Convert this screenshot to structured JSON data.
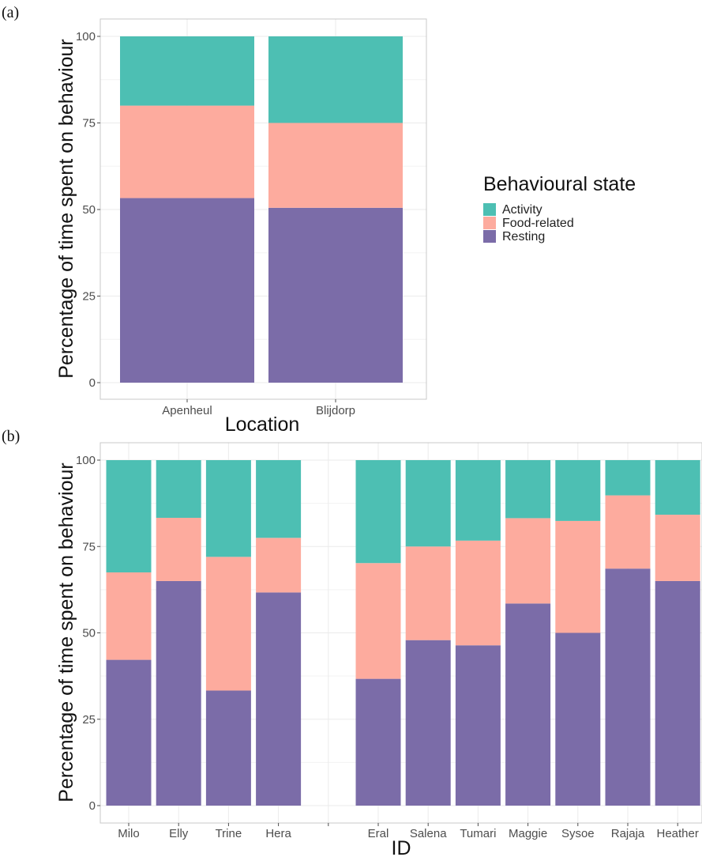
{
  "colors": {
    "Activity": "#4dbfb3",
    "Food-related": "#fdab9e",
    "Resting": "#7b6ca8"
  },
  "legend": {
    "title": "Behavioural state",
    "items": [
      "Activity",
      "Food-related",
      "Resting"
    ]
  },
  "chart_data": [
    {
      "panel_label": "(a)",
      "type": "bar",
      "stacked": true,
      "xlabel": "Location",
      "ylabel": "Percentage of time spent on behaviour",
      "ylim": [
        0,
        100
      ],
      "yticks": [
        0,
        25,
        50,
        75,
        100
      ],
      "categories": [
        "Apenheul",
        "Blijdorp"
      ],
      "series": [
        {
          "name": "Resting",
          "values": [
            53.3,
            50.5
          ]
        },
        {
          "name": "Food-related",
          "values": [
            26.7,
            24.5
          ]
        },
        {
          "name": "Activity",
          "values": [
            20.0,
            25.0
          ]
        }
      ],
      "grid": true
    },
    {
      "panel_label": "(b)",
      "type": "bar",
      "stacked": true,
      "xlabel": "ID",
      "ylabel": "Percentage of time spent on behaviour",
      "ylim": [
        0,
        100
      ],
      "yticks": [
        0,
        25,
        50,
        75,
        100
      ],
      "categories": [
        "Milo",
        "Elly",
        "Trine",
        "Hera",
        "",
        "Eral",
        "Salena",
        "Tumari",
        "Maggie",
        "Sysoe",
        "Rajaja",
        "Heather"
      ],
      "series": [
        {
          "name": "Resting",
          "values": [
            42.2,
            65.0,
            33.3,
            61.7,
            null,
            36.7,
            47.9,
            46.4,
            58.5,
            50.0,
            68.6,
            65.0
          ]
        },
        {
          "name": "Food-related",
          "values": [
            25.3,
            18.3,
            38.7,
            15.8,
            null,
            33.5,
            27.1,
            30.3,
            24.7,
            32.4,
            21.2,
            19.2
          ]
        },
        {
          "name": "Activity",
          "values": [
            32.5,
            16.7,
            28.0,
            22.5,
            null,
            29.8,
            25.0,
            23.3,
            16.8,
            17.6,
            10.2,
            15.8
          ]
        }
      ],
      "grid": true
    }
  ]
}
